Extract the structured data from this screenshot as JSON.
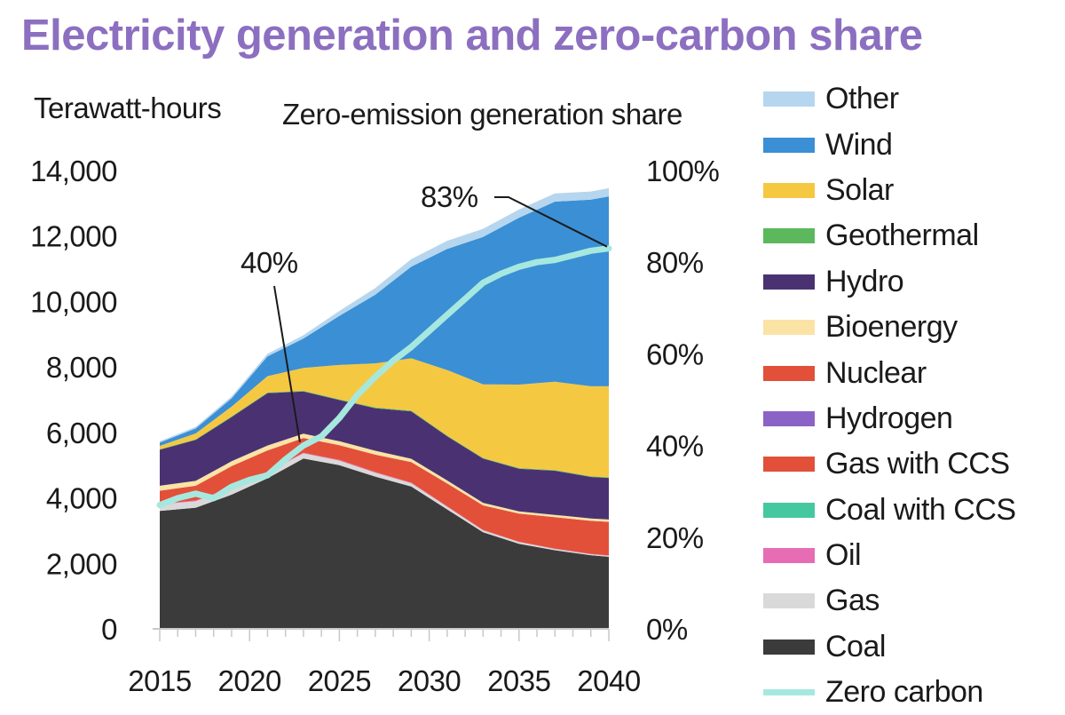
{
  "chart_data": {
    "type": "area",
    "title": "Electricity generation and zero-carbon share",
    "ylabel_left": "Terawatt-hours",
    "ylabel_right": "Zero-emission generation share",
    "x": [
      2015,
      2017,
      2019,
      2021,
      2023,
      2025,
      2027,
      2029,
      2031,
      2033,
      2035,
      2037,
      2039,
      2040
    ],
    "xticks": [
      2015,
      2020,
      2025,
      2030,
      2035,
      2040
    ],
    "xtick_labels": [
      "2015",
      "2020",
      "2025",
      "2030",
      "2035",
      "2040"
    ],
    "ylim_left": [
      0,
      14000
    ],
    "yticks_left": [
      0,
      2000,
      4000,
      6000,
      8000,
      10000,
      12000,
      14000
    ],
    "ytick_labels_left": [
      "0",
      "2,000",
      "4,000",
      "6,000",
      "8,000",
      "10,000",
      "12,000",
      "14,000"
    ],
    "ylim_right": [
      0,
      100
    ],
    "yticks_right": [
      0,
      20,
      40,
      60,
      80,
      100
    ],
    "ytick_labels_right": [
      "0%",
      "20%",
      "40%",
      "60%",
      "80%",
      "100%"
    ],
    "stack_series": [
      {
        "name": "Coal",
        "color": "#3b3b3b",
        "values": [
          3600,
          3700,
          4100,
          4600,
          5200,
          5000,
          4650,
          4350,
          3650,
          2950,
          2600,
          2400,
          2250,
          2200
        ]
      },
      {
        "name": "Gas",
        "color": "#d9d9d9",
        "values": [
          200,
          200,
          200,
          180,
          160,
          140,
          120,
          100,
          80,
          60,
          50,
          40,
          30,
          30
        ]
      },
      {
        "name": "Oil",
        "color": "#e66db4",
        "values": [
          20,
          20,
          20,
          20,
          20,
          20,
          20,
          15,
          15,
          10,
          10,
          10,
          10,
          10
        ]
      },
      {
        "name": "Coal with CCS",
        "color": "#45c8a0",
        "values": [
          0,
          0,
          0,
          0,
          0,
          0,
          0,
          0,
          0,
          0,
          0,
          0,
          0,
          0
        ]
      },
      {
        "name": "Gas with CCS",
        "color": "#e2503a",
        "values": [
          0,
          0,
          0,
          0,
          0,
          0,
          0,
          0,
          0,
          0,
          0,
          0,
          0,
          0
        ]
      },
      {
        "name": "Hydrogen",
        "color": "#8b63c6",
        "values": [
          0,
          0,
          0,
          0,
          0,
          0,
          0,
          0,
          0,
          0,
          0,
          0,
          0,
          0
        ]
      },
      {
        "name": "Nuclear",
        "color": "#e2503a",
        "values": [
          400,
          450,
          650,
          650,
          450,
          450,
          530,
          630,
          700,
          750,
          860,
          960,
          1010,
          1030
        ]
      },
      {
        "name": "Bioenergy",
        "color": "#fbe3a6",
        "values": [
          150,
          150,
          150,
          150,
          130,
          120,
          120,
          100,
          90,
          80,
          70,
          70,
          70,
          70
        ]
      },
      {
        "name": "Hydro",
        "color": "#4a3272",
        "values": [
          1100,
          1250,
          1350,
          1600,
          1290,
          1260,
          1300,
          1450,
          1350,
          1350,
          1300,
          1350,
          1270,
          1270
        ]
      },
      {
        "name": "Geothermal",
        "color": "#5cb85c",
        "values": [
          20,
          20,
          20,
          20,
          20,
          20,
          20,
          20,
          20,
          20,
          20,
          20,
          20,
          20
        ]
      },
      {
        "name": "Solar",
        "color": "#f5c842",
        "values": [
          100,
          180,
          300,
          500,
          700,
          1050,
          1350,
          1600,
          2000,
          2250,
          2550,
          2700,
          2750,
          2780
        ]
      },
      {
        "name": "Wind",
        "color": "#3b8fd4",
        "values": [
          100,
          150,
          250,
          600,
          900,
          1500,
          2100,
          2800,
          3700,
          4500,
          5100,
          5500,
          5700,
          5800
        ]
      },
      {
        "name": "Other",
        "color": "#b5d6ee",
        "values": [
          40,
          50,
          60,
          80,
          100,
          150,
          200,
          230,
          250,
          250,
          250,
          250,
          250,
          250
        ]
      }
    ],
    "line_series": {
      "name": "Zero carbon",
      "color": "#a6e8df",
      "x": [
        2015,
        2016,
        2017,
        2018,
        2019,
        2020,
        2021,
        2022,
        2023,
        2024,
        2025,
        2026,
        2027,
        2028,
        2029,
        2030,
        2031,
        2032,
        2033,
        2034,
        2035,
        2036,
        2037,
        2038,
        2039,
        2040
      ],
      "values": [
        27,
        28.5,
        29.5,
        28.5,
        31,
        32.5,
        33.5,
        37,
        40,
        42,
        46,
        51,
        55,
        58.5,
        61.5,
        65,
        68.5,
        72,
        75.5,
        77.5,
        79,
        80,
        80.5,
        81.5,
        82.5,
        83
      ]
    },
    "annotations": [
      {
        "text": "40%",
        "x": 2023,
        "value": 40
      },
      {
        "text": "83%",
        "x": 2040,
        "value": 83
      }
    ],
    "legend": [
      "Other",
      "Wind",
      "Solar",
      "Geothermal",
      "Hydro",
      "Bioenergy",
      "Nuclear",
      "Hydrogen",
      "Gas with CCS",
      "Coal with CCS",
      "Oil",
      "Gas",
      "Coal",
      "Zero carbon"
    ],
    "legend_position": "right"
  }
}
